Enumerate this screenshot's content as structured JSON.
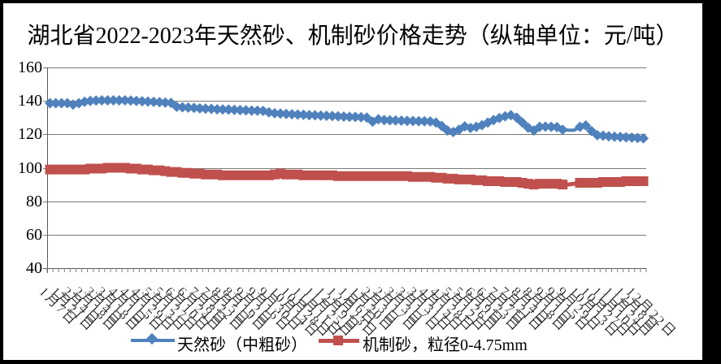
{
  "title": "湖北省2022-2023年天然砂、机制砂价格走势（纵轴单位：元/吨）",
  "legend": {
    "item1": "天然砂（中粗砂）",
    "item2": "机制砂，粒径0-4.75mm"
  },
  "chart_data": {
    "type": "line",
    "title": "湖北省2022-2023年天然砂、机制砂价格走势（纵轴单位：元/吨）",
    "ylim": [
      40,
      160
    ],
    "y_tick_step": 20,
    "y_tick_labels": [
      "160",
      "140",
      "120",
      "100",
      "80",
      "60",
      "40"
    ],
    "grid": "horizontal",
    "legend_position": "bottom",
    "x_labels_every": 2,
    "x_labels": [
      "1月7日",
      "1月21日",
      "2月4日",
      "2月18日",
      "3月4日",
      "3月18日",
      "4月1日",
      "4月15日",
      "4月29日",
      "5月13日",
      "5月27日",
      "6月10日",
      "6月24日",
      "7月8日",
      "7月22日",
      "8月5日",
      "8月19日",
      "9月2日",
      "9月16日",
      "9月30日",
      "10月14日",
      "10月28日",
      "11月11日",
      "11月25日",
      "12月9日",
      "12月23日",
      "1月6日",
      "1月20日",
      "2月3日",
      "2月17日",
      "3月3日",
      "3月17日",
      "3月31日",
      "4月14日",
      "4月28日",
      "5月12日",
      "5月26日",
      "6月9日",
      "6月23日",
      "7月7日",
      "7月21日",
      "8月4日",
      "8月18日",
      "9月1日",
      "9月15日",
      "9月29日",
      "10月13日",
      "10月27日",
      "11月10日",
      "11月24日",
      "12月8日",
      "12月22日"
    ],
    "series": [
      {
        "name": "天然砂（中粗砂）",
        "color": "#4F81BD",
        "marker": "diamond",
        "no_marker_indices": [
          90,
          91
        ],
        "values": [
          138.6,
          138.6,
          138.6,
          138.6,
          137.8,
          138.6,
          139.5,
          140.0,
          140.2,
          140.3,
          140.3,
          140.3,
          140.3,
          140.3,
          140.2,
          140.0,
          139.8,
          139.6,
          139.4,
          139.2,
          139.0,
          138.8,
          136.5,
          136.2,
          136.0,
          135.8,
          135.5,
          135.3,
          135.2,
          135.0,
          134.9,
          134.8,
          134.6,
          134.5,
          134.4,
          134.2,
          134.1,
          134.0,
          133.2,
          132.6,
          132.4,
          132.2,
          132.0,
          131.8,
          131.7,
          131.5,
          131.4,
          131.2,
          131.1,
          131.0,
          130.8,
          130.6,
          130.5,
          130.4,
          130.2,
          130.0,
          127.6,
          129.0,
          128.5,
          128.4,
          128.3,
          128.2,
          128.1,
          128.0,
          127.9,
          127.8,
          127.7,
          127.0,
          125.0,
          122.3,
          121.4,
          122.8,
          124.8,
          123.8,
          124.5,
          125.5,
          127.0,
          128.5,
          129.8,
          130.8,
          131.5,
          130.0,
          127.0,
          124.0,
          122.3,
          124.5,
          124.6,
          124.5,
          124.3,
          122.8,
          122.5,
          122.5,
          124.5,
          125.3,
          122.0,
          119.5,
          119.2,
          118.8,
          118.6,
          118.4,
          118.2,
          118.0,
          117.8,
          117.6
        ]
      },
      {
        "name": "机制砂，粒径0-4.75mm",
        "color": "#C0504D",
        "marker": "square",
        "no_marker_indices": [
          90,
          91
        ],
        "values": [
          99.0,
          99.0,
          99.0,
          99.0,
          99.0,
          99.0,
          99.0,
          99.5,
          99.5,
          99.5,
          100.0,
          100.0,
          100.0,
          100.0,
          99.5,
          99.5,
          99.0,
          99.0,
          98.5,
          98.5,
          98.0,
          97.5,
          97.5,
          97.0,
          97.0,
          96.5,
          96.5,
          96.0,
          96.0,
          96.0,
          95.5,
          95.5,
          95.5,
          95.5,
          95.5,
          95.5,
          95.5,
          95.5,
          95.5,
          96.0,
          96.5,
          96.0,
          96.0,
          96.0,
          95.5,
          95.5,
          95.5,
          95.5,
          95.5,
          95.5,
          95.0,
          95.0,
          95.0,
          95.0,
          95.0,
          95.0,
          95.0,
          95.0,
          95.0,
          95.0,
          95.0,
          95.0,
          95.0,
          94.5,
          94.5,
          94.5,
          94.5,
          94.0,
          94.0,
          93.5,
          93.5,
          93.0,
          93.0,
          93.0,
          92.5,
          92.5,
          92.0,
          92.0,
          92.0,
          91.5,
          91.5,
          91.5,
          91.0,
          90.5,
          90.0,
          90.5,
          90.5,
          90.5,
          90.5,
          90.0,
          90.0,
          90.5,
          91.0,
          91.0,
          91.0,
          91.0,
          91.5,
          91.5,
          91.5,
          91.5,
          92.0,
          92.0,
          92.0,
          92.0
        ]
      }
    ]
  }
}
